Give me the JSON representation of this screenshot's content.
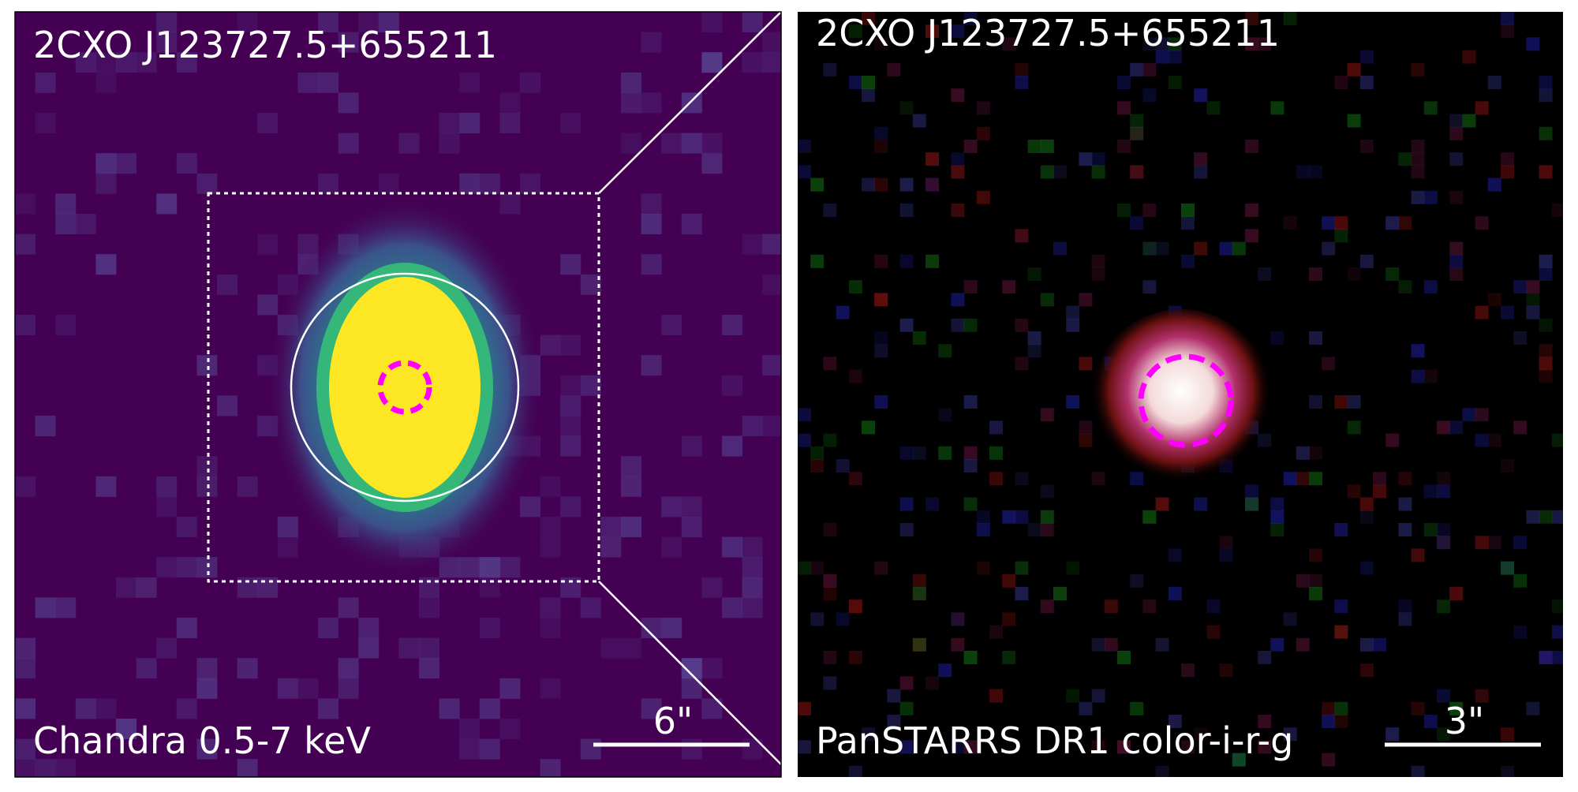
{
  "panels": [
    {
      "title": "2CXO J123727.5+655211",
      "band": "Chandra 0.5-7 keV",
      "scale_label": "6\""
    },
    {
      "title": "2CXO J123727.5+655211",
      "band": "PanSTARRS DR1 color-i-r-g",
      "scale_label": "3\""
    }
  ]
}
